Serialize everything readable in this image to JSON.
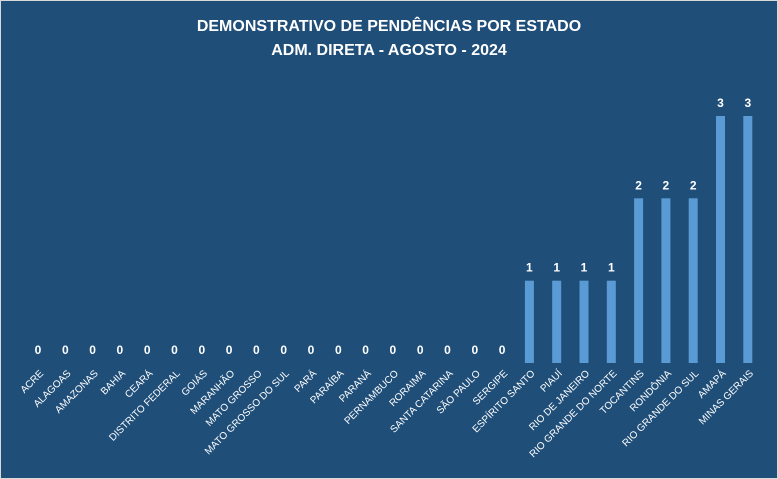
{
  "chart_data": {
    "type": "bar",
    "title": "DEMONSTRATIVO DE PENDÊNCIAS POR ESTADO",
    "subtitle": "ADM. DIRETA - AGOSTO - 2024",
    "xlabel": "",
    "ylabel": "",
    "categories": [
      "ACRE",
      "ALAGOAS",
      "AMAZONAS",
      "BAHIA",
      "CEARÁ",
      "DISTRITO FEDERAL",
      "GOIÁS",
      "MARANHÃO",
      "MATO GROSSO",
      "MATO GROSSO DO SUL",
      "PARÁ",
      "PARAÍBA",
      "PARANÁ",
      "PERNAMBUCO",
      "RORAIMA",
      "SANTA CATARINA",
      "SÃO PAULO",
      "SERGIPE",
      "ESPÍRITO SANTO",
      "PIAUÍ",
      "RIO DE JANEIRO",
      "RIO GRANDE DO NORTE",
      "TOCANTINS",
      "RONDÔNIA",
      "RIO GRANDE DO SUL",
      "AMAPÁ",
      "MINAS GERAIS"
    ],
    "values": [
      0,
      0,
      0,
      0,
      0,
      0,
      0,
      0,
      0,
      0,
      0,
      0,
      0,
      0,
      0,
      0,
      0,
      0,
      1,
      1,
      1,
      1,
      2,
      2,
      2,
      3,
      3
    ],
    "ylim": [
      0,
      3
    ],
    "grid": false,
    "legend": "none",
    "data_labels": true,
    "colors": {
      "background": "#1f4e79",
      "bar": "#5b9bd5",
      "text": "#ffffff"
    }
  }
}
